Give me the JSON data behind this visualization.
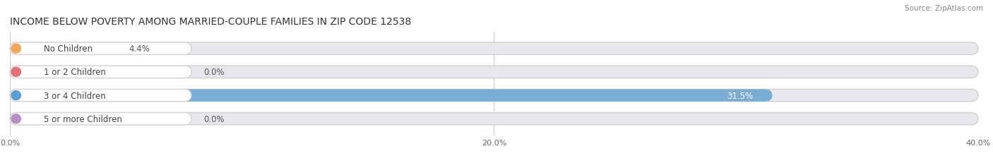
{
  "title": "INCOME BELOW POVERTY AMONG MARRIED-COUPLE FAMILIES IN ZIP CODE 12538",
  "source": "Source: ZipAtlas.com",
  "categories": [
    "No Children",
    "1 or 2 Children",
    "3 or 4 Children",
    "5 or more Children"
  ],
  "values": [
    4.4,
    0.0,
    31.5,
    0.0
  ],
  "bar_colors": [
    "#f5bc84",
    "#f0908a",
    "#7aadd6",
    "#c8a8d8"
  ],
  "label_dot_colors": [
    "#f5a55a",
    "#e87070",
    "#5b9fd4",
    "#b88ec8"
  ],
  "background_color": "#ffffff",
  "bar_bg_color": "#e8e8ec",
  "xlim": [
    0,
    40
  ],
  "xticks": [
    0.0,
    20.0,
    40.0
  ],
  "xtick_labels": [
    "0.0%",
    "20.0%",
    "40.0%"
  ],
  "title_fontsize": 10,
  "label_fontsize": 8.5,
  "value_fontsize": 8.5,
  "bar_height": 0.52,
  "rounding": 0.28
}
